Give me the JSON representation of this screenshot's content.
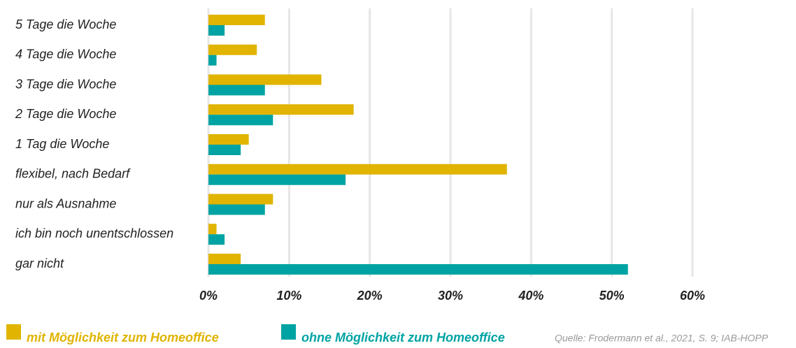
{
  "chart_data": {
    "type": "hbar",
    "categories": [
      "5 Tage die Woche",
      "4 Tage die Woche",
      "3 Tage die Woche",
      "2 Tage die Woche",
      "1 Tag die Woche",
      "flexibel, nach Bedarf",
      "nur als Ausnahme",
      "ich bin noch unentschlossen",
      "gar nicht"
    ],
    "series": [
      {
        "name": "mit Möglichkeit zum Homeoffice",
        "color": "#e0b400",
        "values": [
          7,
          6,
          14,
          18,
          5,
          37,
          8,
          1,
          4
        ]
      },
      {
        "name": "ohne Möglichkeit zum Homeoffice",
        "color": "#00a3a3",
        "values": [
          2,
          1,
          7,
          8,
          4,
          17,
          7,
          2,
          52
        ]
      }
    ],
    "xlim": [
      0,
      60
    ],
    "xticks": [
      {
        "value": 0,
        "label": "0%"
      },
      {
        "value": 10,
        "label": "10%"
      },
      {
        "value": 20,
        "label": "20%"
      },
      {
        "value": 30,
        "label": "30%"
      },
      {
        "value": 40,
        "label": "40%"
      },
      {
        "value": 50,
        "label": "50%"
      },
      {
        "value": 60,
        "label": "60%"
      }
    ],
    "grid": true,
    "source": "Quelle: Frodermann et al., 2021, S. 9; IAB-HOPP"
  }
}
